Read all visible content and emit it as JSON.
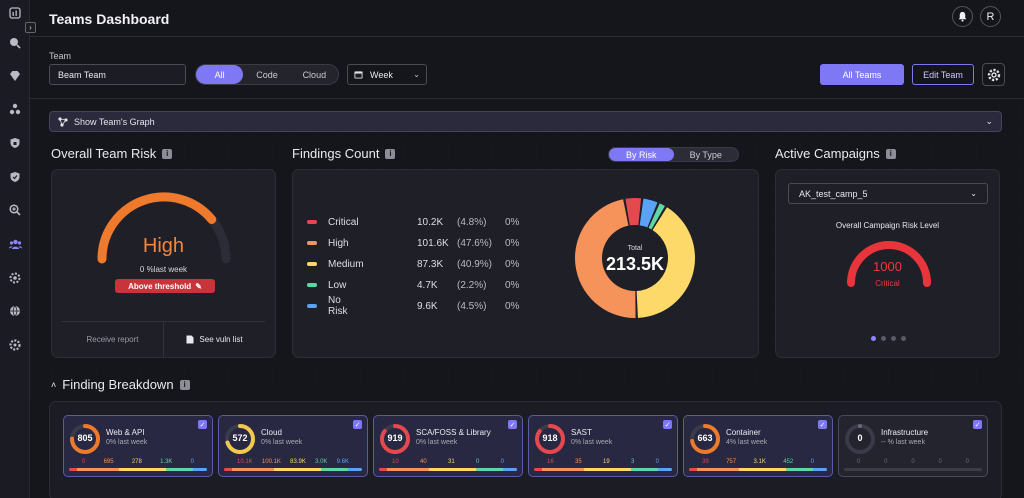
{
  "header": {
    "title": "Teams Dashboard",
    "user_initial": "R"
  },
  "filters": {
    "team_label": "Team",
    "team_value": "Beam Team",
    "scope_options": [
      "All",
      "Code",
      "Cloud"
    ],
    "scope_selected": "All",
    "period": "Week",
    "all_teams": "All Teams",
    "edit_team": "Edit Team"
  },
  "graph_bar": {
    "label": "Show Team's Graph"
  },
  "risk": {
    "title": "Overall Team Risk",
    "level": "High",
    "change": "0 %last week",
    "threshold": "Above threshold",
    "receive_report": "Receive report",
    "see_vuln": "See vuln list",
    "gauge_fraction": 0.78,
    "color": "#f07a2c"
  },
  "findings": {
    "title": "Findings Count",
    "toggle": [
      "By Risk",
      "By Type"
    ],
    "toggle_selected": "By Risk",
    "total_label": "Total",
    "total": "213.5K",
    "rows": [
      {
        "name": "Critical",
        "value": "10.2K",
        "pct": "(4.8%)",
        "change": "0%",
        "color": "#e5484d",
        "share": 4.8
      },
      {
        "name": "High",
        "value": "101.6K",
        "pct": "(47.6%)",
        "change": "0%",
        "color": "#f5935a",
        "share": 47.6
      },
      {
        "name": "Medium",
        "value": "87.3K",
        "pct": "(40.9%)",
        "change": "0%",
        "color": "#fcd968",
        "share": 40.9
      },
      {
        "name": "Low",
        "value": "4.7K",
        "pct": "(2.2%)",
        "change": "0%",
        "color": "#5fd6a4",
        "share": 2.2
      },
      {
        "name": "No Risk",
        "value": "9.6K",
        "pct": "(4.5%)",
        "change": "0%",
        "color": "#5aa2f5",
        "share": 4.5
      }
    ]
  },
  "campaigns": {
    "title": "Active Campaigns",
    "selected": "AK_test_camp_5",
    "level_label": "Overall Campaign Risk Level",
    "value": "1000",
    "level": "Critical",
    "gauge_fraction": 1.0,
    "color": "#e8353b"
  },
  "breakdown": {
    "title": "Finding Breakdown",
    "cards": [
      {
        "name": "Web & API",
        "value": "805",
        "change": "0% last week",
        "nums": [
          "0",
          "695",
          "278",
          "1.3K",
          "0"
        ],
        "ring_color": "#f07a2c",
        "ring_fraction": 0.75,
        "enabled": true
      },
      {
        "name": "Cloud",
        "value": "572",
        "change": "0% last week",
        "nums": [
          "10.1K",
          "100.1K",
          "83.9K",
          "3.0K",
          "9.6K"
        ],
        "ring_color": "#f2c94c",
        "ring_fraction": 0.7,
        "enabled": true
      },
      {
        "name": "SCA/FOSS & Library",
        "value": "919",
        "change": "0% last week",
        "nums": [
          "10",
          "40",
          "31",
          "0",
          "0"
        ],
        "ring_color": "#e5484d",
        "ring_fraction": 0.85,
        "enabled": true
      },
      {
        "name": "SAST",
        "value": "918",
        "change": "0% last week",
        "nums": [
          "16",
          "35",
          "19",
          "3",
          "0"
        ],
        "ring_color": "#e5484d",
        "ring_fraction": 0.85,
        "enabled": true
      },
      {
        "name": "Container",
        "value": "663",
        "change": "4% last week",
        "nums": [
          "39",
          "757",
          "3.1K",
          "452",
          "0"
        ],
        "ring_color": "#f07a2c",
        "ring_fraction": 0.72,
        "enabled": true
      },
      {
        "name": "Infrastructure",
        "value": "0",
        "change": "-- % last week",
        "nums": [
          "0",
          "0",
          "0",
          "0",
          "0"
        ],
        "ring_color": "#6b6b78",
        "ring_fraction": 0.0,
        "enabled": false
      }
    ],
    "num_colors": [
      "#e5484d",
      "#f5935a",
      "#fcd968",
      "#5fd6a4",
      "#5aa2f5"
    ]
  }
}
